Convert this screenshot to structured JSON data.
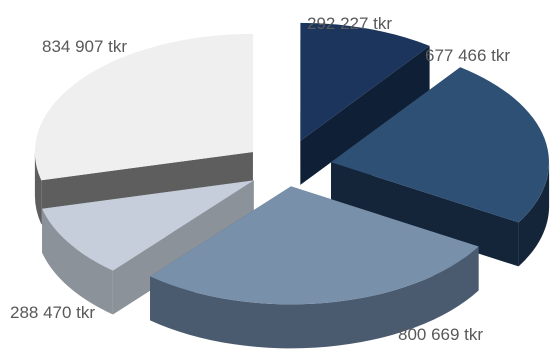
{
  "chart_data": {
    "type": "pie",
    "style": "3d-exploded",
    "title": "",
    "categories": [
      "292 227 tkr",
      "677 466 tkr",
      "800 669 tkr",
      "288 470 tkr",
      "834 907 tkr"
    ],
    "values": [
      292227,
      677466,
      800669,
      288470,
      834907
    ],
    "data_labels": [
      "292 227 tkr",
      "677 466 tkr",
      "800 669 tkr",
      "288 470 tkr",
      "834 907 tkr"
    ],
    "colors": {
      "top": [
        "#1b355c",
        "#2e5075",
        "#7890aa",
        "#c5ceda",
        "#efefef"
      ],
      "side": [
        "#0f1f36",
        "#14253a",
        "#4a5b70",
        "#8c9299",
        "#5e5e5e"
      ]
    },
    "legend": "none",
    "grid": false
  }
}
